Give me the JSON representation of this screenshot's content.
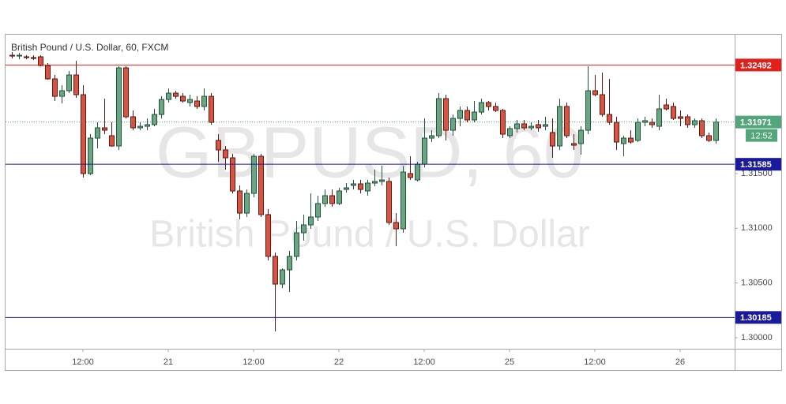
{
  "chart_data": {
    "type": "candlestick",
    "title": "British Pound / U.S. Dollar, 60, FXCM",
    "watermark": {
      "symbol": "GBPUSD, 60",
      "name": "British Pound / U.S. Dollar"
    },
    "open": [
      1.32581,
      1.32574,
      1.32567,
      1.3256,
      1.32567,
      1.32487,
      1.32365,
      1.32206,
      1.32257,
      1.32401,
      1.32221,
      1.315,
      1.31824,
      1.31918,
      1.31846,
      1.31752,
      1.32466,
      1.32019,
      1.31918,
      1.31932,
      1.31947,
      1.3204,
      1.32177,
      1.32235,
      1.32206,
      1.32149,
      1.32163,
      1.32113,
      1.32206,
      1.31803,
      1.31716,
      1.31644,
      1.31341,
      1.31139,
      1.31319,
      1.31658,
      1.31125,
      1.30743,
      1.3049,
      1.3062,
      1.30743,
      1.30959,
      1.31031,
      1.31103,
      1.31226,
      1.31298,
      1.31226,
      1.31355,
      1.31392,
      1.31406,
      1.31341,
      1.31413,
      1.31428,
      1.31428,
      1.31053,
      1.30995,
      1.315,
      1.31442,
      1.31586,
      1.31824,
      1.31846,
      1.32185,
      1.31896,
      1.32004,
      1.32077,
      1.3199,
      1.32062,
      1.32149,
      1.32113,
      1.32077,
      1.31846,
      1.31911,
      1.31954,
      1.31918,
      1.31947,
      1.31932,
      1.31875,
      1.31752,
      1.32113,
      1.31774,
      1.31774,
      1.31896,
      1.32257,
      1.32221,
      1.3204,
      1.31968,
      1.31774,
      1.31824,
      1.31803,
      1.31968,
      1.31968,
      1.31932,
      1.32127,
      1.32113,
      1.32019,
      1.32019,
      1.31947,
      1.31983,
      1.31846,
      1.31803
    ],
    "high": [
      1.3261,
      1.32603,
      1.32581,
      1.32581,
      1.32581,
      1.32509,
      1.32401,
      1.32307,
      1.32437,
      1.32531,
      1.32307,
      1.3186,
      1.31968,
      1.32185,
      1.31968,
      1.3248,
      1.3248,
      1.32077,
      1.31968,
      1.32004,
      1.32091,
      1.32206,
      1.32278,
      1.32257,
      1.32235,
      1.32221,
      1.32206,
      1.32278,
      1.32235,
      1.3186,
      1.31752,
      1.3168,
      1.31392,
      1.31355,
      1.3168,
      1.3168,
      1.31175,
      1.30779,
      1.30634,
      1.30793,
      1.31067,
      1.31125,
      1.31319,
      1.31298,
      1.31355,
      1.31355,
      1.3137,
      1.31413,
      1.31442,
      1.31442,
      1.31442,
      1.31536,
      1.31572,
      1.31464,
      1.31139,
      1.31572,
      1.31658,
      1.31608,
      1.32004,
      1.31896,
      1.32235,
      1.32221,
      1.3204,
      1.32113,
      1.32113,
      1.32163,
      1.32185,
      1.32163,
      1.32149,
      1.32091,
      1.31932,
      1.3199,
      1.3199,
      1.31968,
      1.3199,
      1.32019,
      1.32004,
      1.32185,
      1.32149,
      1.3186,
      1.31932,
      1.3248,
      1.32401,
      1.32423,
      1.32365,
      1.32019,
      1.31846,
      1.31896,
      1.32004,
      1.32019,
      1.32004,
      1.32221,
      1.32185,
      1.32149,
      1.32077,
      1.3204,
      1.32004,
      1.32004,
      1.31875,
      1.32004
    ],
    "low": [
      1.32552,
      1.32545,
      1.32545,
      1.32538,
      1.3248,
      1.32358,
      1.32163,
      1.32141,
      1.32235,
      1.32192,
      1.31464,
      1.31485,
      1.3173,
      1.3186,
      1.31745,
      1.31716,
      1.32004,
      1.31896,
      1.31896,
      1.31896,
      1.31932,
      1.32004,
      1.32149,
      1.32185,
      1.32149,
      1.32113,
      1.32091,
      1.32077,
      1.31947,
      1.31608,
      1.31536,
      1.31319,
      1.31082,
      1.31103,
      1.31283,
      1.31103,
      1.30707,
      1.30058,
      1.30454,
      1.30418,
      1.30707,
      1.30887,
      1.30995,
      1.31067,
      1.31197,
      1.31197,
      1.31211,
      1.31327,
      1.31355,
      1.31319,
      1.31298,
      1.31384,
      1.31392,
      1.31031,
      1.30836,
      1.30959,
      1.31442,
      1.31428,
      1.31557,
      1.31788,
      1.31824,
      1.31803,
      1.31846,
      1.31932,
      1.31968,
      1.31968,
      1.3204,
      1.32077,
      1.32062,
      1.31824,
      1.31824,
      1.31875,
      1.31896,
      1.31896,
      1.31882,
      1.31896,
      1.31644,
      1.31716,
      1.31824,
      1.31716,
      1.31673,
      1.3186,
      1.32206,
      1.32019,
      1.31947,
      1.31716,
      1.31658,
      1.31774,
      1.31788,
      1.31932,
      1.31918,
      1.31896,
      1.32077,
      1.3199,
      1.31932,
      1.31918,
      1.31918,
      1.31824,
      1.31788,
      1.31774
    ],
    "close": [
      1.32574,
      1.32581,
      1.3256,
      1.32552,
      1.32487,
      1.32365,
      1.32206,
      1.32257,
      1.32401,
      1.32221,
      1.315,
      1.31824,
      1.31918,
      1.31896,
      1.31752,
      1.32466,
      1.32019,
      1.31918,
      1.31932,
      1.31947,
      1.3204,
      1.32177,
      1.32235,
      1.32206,
      1.32163,
      1.32177,
      1.32113,
      1.32206,
      1.31968,
      1.31716,
      1.31644,
      1.31341,
      1.31139,
      1.31319,
      1.31658,
      1.31125,
      1.30743,
      1.3049,
      1.3062,
      1.30743,
      1.30959,
      1.31031,
      1.31103,
      1.31226,
      1.31298,
      1.31226,
      1.31341,
      1.3137,
      1.31406,
      1.31355,
      1.31413,
      1.31428,
      1.31442,
      1.31053,
      1.30995,
      1.31514,
      1.31464,
      1.31586,
      1.31824,
      1.31846,
      1.32185,
      1.31896,
      1.32004,
      1.32077,
      1.3199,
      1.32062,
      1.32149,
      1.32113,
      1.32077,
      1.3186,
      1.31911,
      1.31954,
      1.31918,
      1.31932,
      1.31918,
      1.31947,
      1.31752,
      1.32113,
      1.31846,
      1.31759,
      1.31896,
      1.32257,
      1.32221,
      1.3204,
      1.31968,
      1.31788,
      1.31824,
      1.31788,
      1.31968,
      1.31983,
      1.31947,
      1.32091,
      1.32091,
      1.32004,
      1.32004,
      1.31947,
      1.31983,
      1.31846,
      1.31803,
      1.31971
    ],
    "up_color": "#6ba583",
    "down_color": "#d75442",
    "xlim": [
      -0.89,
      101.67
    ],
    "ylim": [
      1.29899,
      1.32776
    ],
    "yticks": [
      {
        "value": 1.3,
        "label": "1.30000"
      },
      {
        "value": 1.305,
        "label": "1.30500"
      },
      {
        "value": 1.31,
        "label": "1.31000"
      },
      {
        "value": 1.315,
        "label": "1.31500"
      }
    ],
    "xticks": [
      {
        "value": 10,
        "label": "12:00"
      },
      {
        "value": 22,
        "label": "21"
      },
      {
        "value": 34,
        "label": "12:00"
      },
      {
        "value": 46,
        "label": "22"
      },
      {
        "value": 58,
        "label": "12:00"
      },
      {
        "value": 70,
        "label": "25"
      },
      {
        "value": 82,
        "label": "12:00"
      },
      {
        "value": 94,
        "label": "26"
      }
    ],
    "levels": [
      {
        "value": 1.32492,
        "color": "#e0201b"
      },
      {
        "value": 1.31585,
        "color": "#1a1a9c"
      },
      {
        "value": 1.30185,
        "color": "#1a1a9c"
      }
    ],
    "last_price": {
      "value": 1.31971,
      "color": "#53a57b"
    },
    "countdown": "12:52"
  }
}
